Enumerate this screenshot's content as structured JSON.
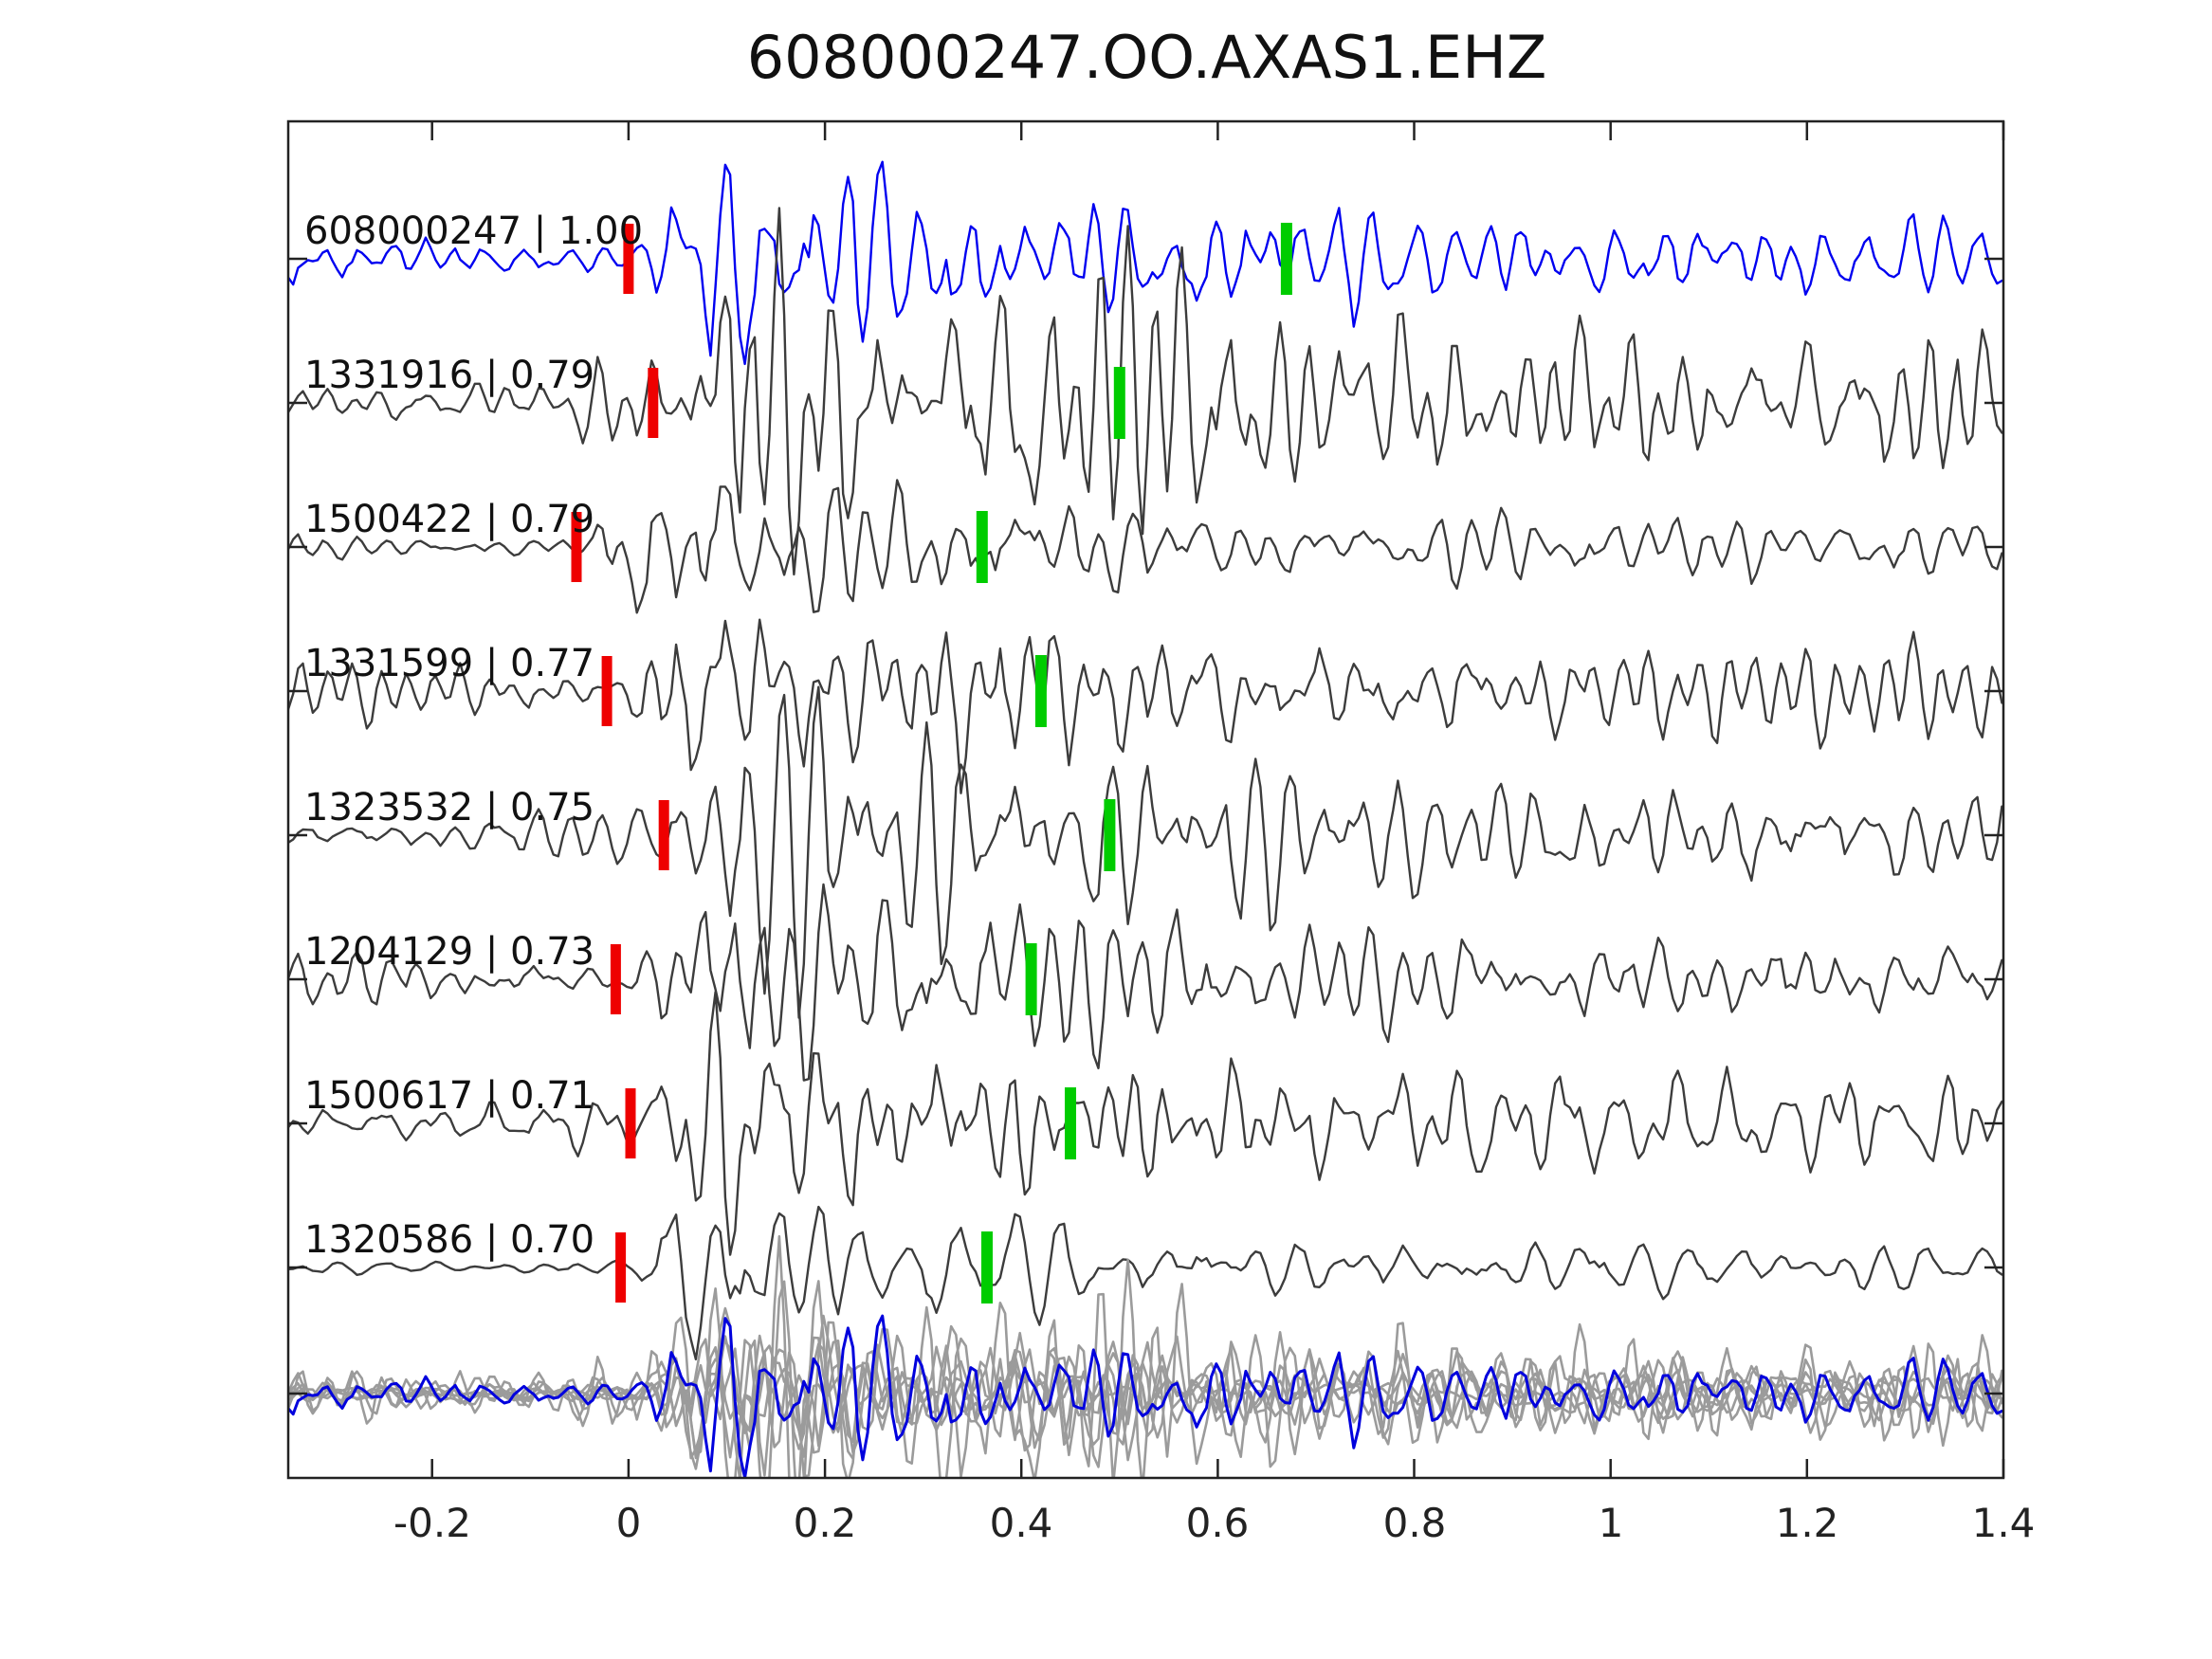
{
  "chart_data": {
    "type": "line",
    "title": "608000247.OO.AXAS1.EHZ",
    "subtitle": "",
    "xlabel": "",
    "ylabel": "",
    "xlim": [
      -0.3465,
      1.4
    ],
    "grid": false,
    "legend": "none",
    "x_tick_values": [
      -0.2,
      0,
      0.2,
      0.4,
      0.6,
      0.8,
      1,
      1.2,
      1.4
    ],
    "x_tick_labels": [
      "-0.2",
      "0",
      "0.2",
      "0.4",
      "0.6",
      "0.8",
      "1",
      "1.2",
      "1.4"
    ],
    "colors": {
      "template_trace": "#0000f0",
      "matched_trace": "#3c3c3c",
      "overlay_gray": "#9b9b9b",
      "overlay_template": "#0000dd",
      "pick_red": "#ee0000",
      "pick_green": "#00cc00",
      "axis": "#222222"
    },
    "traces": [
      {
        "id": "608000247",
        "correlation": "1.00",
        "label": "608000247 | 1.00",
        "is_template": true,
        "red_pick_t": 0.0,
        "green_pick_t": 0.67
      },
      {
        "id": "1331916",
        "correlation": "0.79",
        "label": "1331916 | 0.79",
        "is_template": false,
        "red_pick_t": 0.025,
        "green_pick_t": 0.5
      },
      {
        "id": "1500422",
        "correlation": "0.79",
        "label": "1500422 | 0.79",
        "is_template": false,
        "red_pick_t": -0.053,
        "green_pick_t": 0.36
      },
      {
        "id": "1331599",
        "correlation": "0.77",
        "label": "1331599 | 0.77",
        "is_template": false,
        "red_pick_t": -0.022,
        "green_pick_t": 0.42
      },
      {
        "id": "1323532",
        "correlation": "0.75",
        "label": "1323532 | 0.75",
        "is_template": false,
        "red_pick_t": 0.036,
        "green_pick_t": 0.49
      },
      {
        "id": "1204129",
        "correlation": "0.73",
        "label": "1204129 | 0.73",
        "is_template": false,
        "red_pick_t": -0.013,
        "green_pick_t": 0.41
      },
      {
        "id": "1500617",
        "correlation": "0.71",
        "label": "1500617 | 0.71",
        "is_template": false,
        "red_pick_t": 0.002,
        "green_pick_t": 0.45
      },
      {
        "id": "1320586",
        "correlation": "0.70",
        "label": "1320586 | 0.70",
        "is_template": false,
        "red_pick_t": -0.008,
        "green_pick_t": 0.365
      }
    ],
    "overlay_row": {
      "description": "all matched traces aligned on pick and superimposed with template on top",
      "gray_trace_count": 8,
      "includes_template": true
    }
  }
}
